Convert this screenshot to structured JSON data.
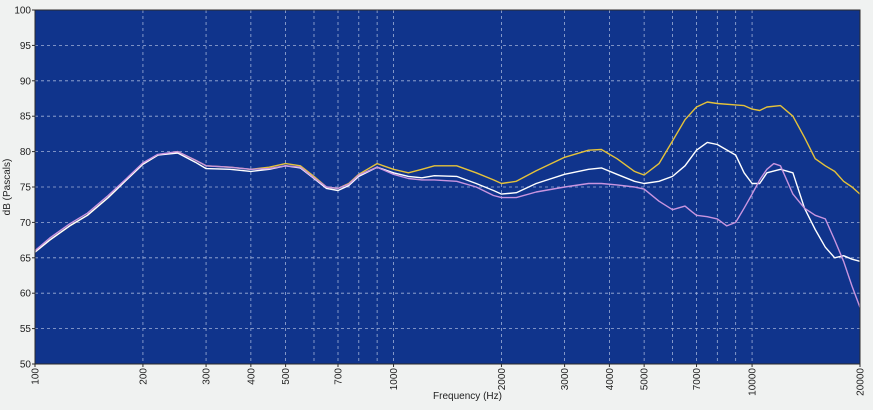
{
  "chart_data": {
    "type": "line",
    "xlabel": "Frequency (Hz)",
    "ylabel": "dB (Pascals)",
    "x_scale": "log",
    "xlim": [
      100,
      20000
    ],
    "ylim": [
      50,
      100
    ],
    "grid": true,
    "x_ticks": [
      100,
      200,
      300,
      400,
      500,
      700,
      1000,
      2000,
      3000,
      4000,
      5000,
      7000,
      10000,
      20000
    ],
    "x_tick_labels": [
      "100",
      "200",
      "300",
      "400",
      "500",
      "700",
      "1000",
      "2000",
      "3000",
      "4000",
      "5000",
      "7000",
      "10000",
      "20000"
    ],
    "x_minor_grid": [
      600,
      800,
      900,
      6000,
      8000,
      9000
    ],
    "y_ticks": [
      50,
      55,
      60,
      65,
      70,
      75,
      80,
      85,
      90,
      95,
      100
    ],
    "y_tick_labels": [
      "50",
      "55",
      "60",
      "65",
      "70",
      "75",
      "80",
      "85",
      "90",
      "95",
      "100"
    ],
    "colors": {
      "plot_background": "#10348c",
      "grid": "#9fb0d8",
      "page_background": "#f0f2f1"
    },
    "series": [
      {
        "color": "#e5c23a",
        "points": [
          [
            100,
            65.8
          ],
          [
            110,
            67.5
          ],
          [
            125,
            69.5
          ],
          [
            140,
            71
          ],
          [
            160,
            73.5
          ],
          [
            180,
            76
          ],
          [
            200,
            78.2
          ],
          [
            220,
            79.5
          ],
          [
            250,
            80
          ],
          [
            280,
            78.8
          ],
          [
            300,
            78
          ],
          [
            350,
            77.8
          ],
          [
            400,
            77.5
          ],
          [
            450,
            77.8
          ],
          [
            500,
            78.3
          ],
          [
            550,
            78
          ],
          [
            600,
            76.5
          ],
          [
            650,
            75
          ],
          [
            700,
            74.8
          ],
          [
            750,
            75.5
          ],
          [
            800,
            76.8
          ],
          [
            900,
            78.3
          ],
          [
            1000,
            77.5
          ],
          [
            1100,
            77
          ],
          [
            1200,
            77.5
          ],
          [
            1300,
            78
          ],
          [
            1500,
            78
          ],
          [
            1700,
            77
          ],
          [
            1900,
            76
          ],
          [
            2000,
            75.5
          ],
          [
            2200,
            75.8
          ],
          [
            2500,
            77.3
          ],
          [
            3000,
            79.2
          ],
          [
            3500,
            80.2
          ],
          [
            3800,
            80.3
          ],
          [
            4200,
            79
          ],
          [
            4700,
            77.2
          ],
          [
            5000,
            76.7
          ],
          [
            5500,
            78.3
          ],
          [
            6000,
            81.5
          ],
          [
            6500,
            84.5
          ],
          [
            7000,
            86.3
          ],
          [
            7500,
            87
          ],
          [
            8000,
            86.8
          ],
          [
            9000,
            86.6
          ],
          [
            9500,
            86.5
          ],
          [
            10000,
            86
          ],
          [
            10500,
            85.8
          ],
          [
            11000,
            86.3
          ],
          [
            12000,
            86.5
          ],
          [
            13000,
            85
          ],
          [
            14000,
            82
          ],
          [
            15000,
            79
          ],
          [
            16000,
            78
          ],
          [
            17000,
            77.2
          ],
          [
            18000,
            75.8
          ],
          [
            19000,
            75
          ],
          [
            20000,
            74
          ]
        ]
      },
      {
        "color": "#ffffff",
        "points": [
          [
            100,
            65.8
          ],
          [
            110,
            67.5
          ],
          [
            125,
            69.5
          ],
          [
            140,
            71
          ],
          [
            160,
            73.5
          ],
          [
            180,
            76
          ],
          [
            200,
            78.2
          ],
          [
            220,
            79.5
          ],
          [
            250,
            79.8
          ],
          [
            280,
            78.5
          ],
          [
            300,
            77.6
          ],
          [
            350,
            77.5
          ],
          [
            400,
            77.2
          ],
          [
            450,
            77.5
          ],
          [
            500,
            78
          ],
          [
            550,
            77.7
          ],
          [
            600,
            76.2
          ],
          [
            650,
            74.8
          ],
          [
            700,
            74.5
          ],
          [
            750,
            75.2
          ],
          [
            800,
            76.5
          ],
          [
            900,
            77.8
          ],
          [
            1000,
            77
          ],
          [
            1100,
            76.5
          ],
          [
            1200,
            76.3
          ],
          [
            1300,
            76.6
          ],
          [
            1500,
            76.5
          ],
          [
            1700,
            75.5
          ],
          [
            1900,
            74.5
          ],
          [
            2000,
            74
          ],
          [
            2200,
            74.2
          ],
          [
            2500,
            75.5
          ],
          [
            3000,
            76.8
          ],
          [
            3500,
            77.5
          ],
          [
            3800,
            77.7
          ],
          [
            4200,
            76.8
          ],
          [
            4700,
            75.8
          ],
          [
            5000,
            75.5
          ],
          [
            5500,
            75.8
          ],
          [
            6000,
            76.5
          ],
          [
            6500,
            78
          ],
          [
            7000,
            80.2
          ],
          [
            7500,
            81.3
          ],
          [
            8000,
            81
          ],
          [
            9000,
            79.5
          ],
          [
            9500,
            77
          ],
          [
            10000,
            75.5
          ],
          [
            10500,
            75.5
          ],
          [
            11000,
            77
          ],
          [
            12000,
            77.5
          ],
          [
            13000,
            77
          ],
          [
            14000,
            72
          ],
          [
            15000,
            69
          ],
          [
            16000,
            66.5
          ],
          [
            17000,
            65
          ],
          [
            18000,
            65.3
          ],
          [
            19000,
            64.8
          ],
          [
            20000,
            64.5
          ]
        ]
      },
      {
        "color": "#c995e0",
        "points": [
          [
            100,
            66
          ],
          [
            110,
            67.8
          ],
          [
            125,
            69.8
          ],
          [
            140,
            71.3
          ],
          [
            160,
            73.8
          ],
          [
            180,
            76.2
          ],
          [
            200,
            78.4
          ],
          [
            220,
            79.6
          ],
          [
            250,
            80
          ],
          [
            280,
            78.8
          ],
          [
            300,
            78
          ],
          [
            350,
            77.8
          ],
          [
            400,
            77.5
          ],
          [
            450,
            77.6
          ],
          [
            500,
            78
          ],
          [
            550,
            77.8
          ],
          [
            600,
            76.3
          ],
          [
            650,
            75
          ],
          [
            700,
            74.8
          ],
          [
            750,
            75.4
          ],
          [
            800,
            76.7
          ],
          [
            900,
            77.8
          ],
          [
            1000,
            76.8
          ],
          [
            1100,
            76.2
          ],
          [
            1200,
            76
          ],
          [
            1300,
            76
          ],
          [
            1500,
            75.8
          ],
          [
            1700,
            75
          ],
          [
            1900,
            73.8
          ],
          [
            2000,
            73.5
          ],
          [
            2200,
            73.5
          ],
          [
            2500,
            74.3
          ],
          [
            3000,
            75
          ],
          [
            3500,
            75.5
          ],
          [
            3800,
            75.5
          ],
          [
            4200,
            75.3
          ],
          [
            4700,
            75
          ],
          [
            5000,
            74.7
          ],
          [
            5500,
            73
          ],
          [
            6000,
            71.8
          ],
          [
            6500,
            72.3
          ],
          [
            6800,
            71.5
          ],
          [
            7000,
            71
          ],
          [
            7500,
            70.8
          ],
          [
            8000,
            70.5
          ],
          [
            8500,
            69.5
          ],
          [
            9000,
            70
          ],
          [
            9500,
            72
          ],
          [
            10000,
            74
          ],
          [
            10500,
            76
          ],
          [
            11000,
            77.5
          ],
          [
            11500,
            78.3
          ],
          [
            12000,
            78
          ],
          [
            13000,
            74
          ],
          [
            14000,
            72
          ],
          [
            15000,
            71
          ],
          [
            16000,
            70.5
          ],
          [
            17000,
            67.5
          ],
          [
            18000,
            64.5
          ],
          [
            19000,
            61
          ],
          [
            20000,
            58
          ]
        ]
      }
    ]
  }
}
